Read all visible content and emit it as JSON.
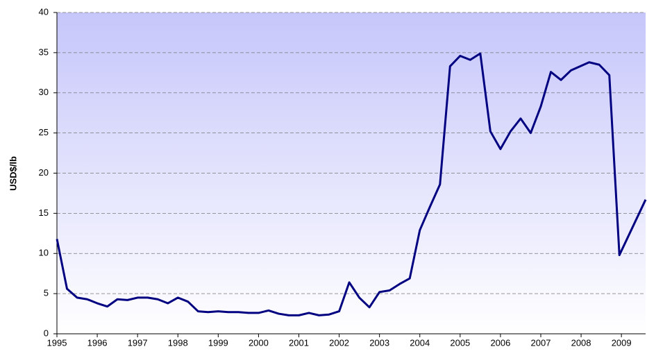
{
  "chart_data": {
    "type": "line",
    "ylabel": "USD$/lb",
    "x": [
      1995,
      1995.25,
      1995.5,
      1995.75,
      1996,
      1996.25,
      1996.5,
      1996.75,
      1997,
      1997.25,
      1997.5,
      1997.75,
      1998,
      1998.25,
      1998.5,
      1998.75,
      1999,
      1999.25,
      1999.5,
      1999.75,
      2000,
      2000.25,
      2000.5,
      2000.75,
      2001,
      2001.25,
      2001.5,
      2001.75,
      2002,
      2002.25,
      2002.5,
      2002.75,
      2003,
      2003.25,
      2003.5,
      2003.75,
      2004,
      2004.25,
      2004.5,
      2004.75,
      2005,
      2005.25,
      2005.5,
      2005.75,
      2006,
      2006.25,
      2006.5,
      2006.75,
      2007,
      2007.25,
      2007.5,
      2007.75,
      2008.2,
      2008.45,
      2008.7,
      2008.95,
      2009.6
    ],
    "series": [
      {
        "name": "USD$/lb",
        "color": "#000080",
        "values": [
          11.8,
          5.6,
          4.5,
          4.3,
          3.8,
          3.4,
          4.3,
          4.2,
          4.5,
          4.5,
          4.3,
          3.8,
          4.5,
          4.0,
          2.8,
          2.7,
          2.8,
          2.7,
          2.7,
          2.6,
          2.6,
          2.9,
          2.5,
          2.3,
          2.3,
          2.6,
          2.3,
          2.4,
          2.8,
          6.4,
          4.5,
          3.3,
          5.2,
          5.4,
          6.2,
          6.9,
          12.9,
          15.8,
          18.6,
          33.3,
          34.6,
          34.1,
          34.9,
          25.2,
          23.0,
          25.2,
          26.8,
          25.0,
          28.3,
          32.6,
          31.6,
          32.8,
          33.8,
          33.5,
          32.2,
          9.8,
          16.7
        ]
      }
    ],
    "xlim": [
      1995,
      2009.6
    ],
    "xticks": [
      1995,
      1996,
      1997,
      1998,
      1999,
      2000,
      2001,
      2002,
      2003,
      2004,
      2005,
      2006,
      2007,
      2008,
      2009
    ],
    "ylim": [
      0,
      40
    ],
    "yticks": [
      0,
      5,
      10,
      15,
      20,
      25,
      30,
      35,
      40
    ],
    "grid": true
  }
}
